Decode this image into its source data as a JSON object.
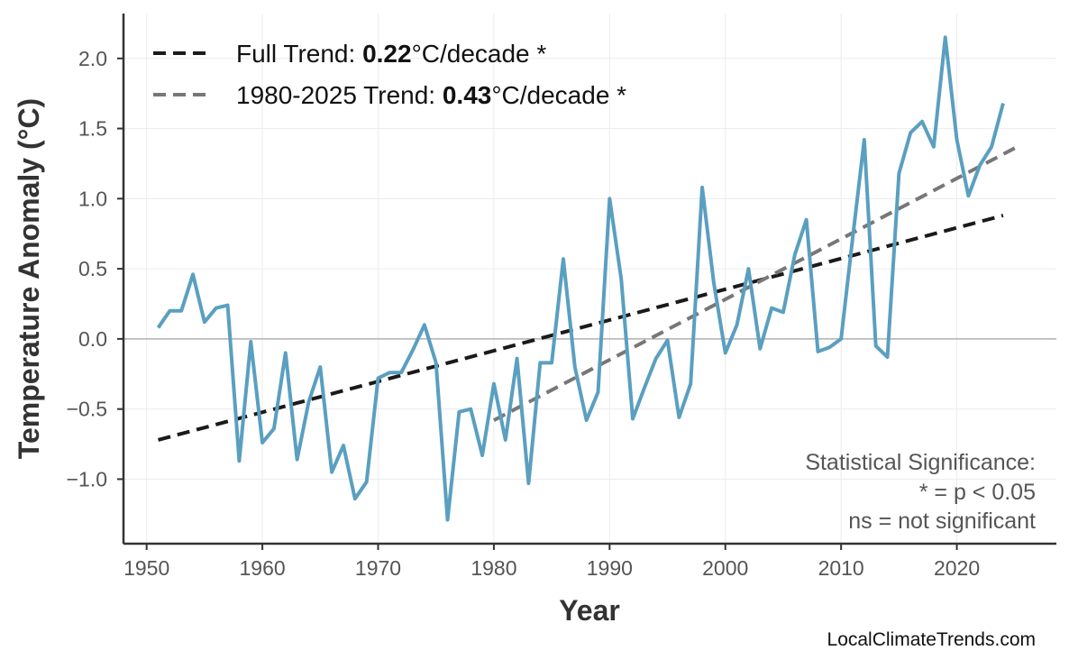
{
  "chart_data": {
    "type": "line",
    "title": "",
    "xlabel": "Year",
    "ylabel": "Temperature Anomaly (°C)",
    "xlim": [
      1948,
      2028.6
    ],
    "ylim": [
      -1.46,
      2.32
    ],
    "xticks": [
      1950,
      1960,
      1970,
      1980,
      1990,
      2000,
      2010,
      2020
    ],
    "xtick_labels": [
      "1950",
      "1960",
      "1970",
      "1980",
      "1990",
      "2000",
      "2010",
      "2020"
    ],
    "yticks": [
      -1.0,
      -0.5,
      0.0,
      0.5,
      1.0,
      1.5,
      2.0
    ],
    "ytick_labels": [
      "−1.0",
      "−0.5",
      "0.0",
      "0.5",
      "1.0",
      "1.5",
      "2.0"
    ],
    "grid": true,
    "zero_line": true,
    "legend_position": "top-left",
    "colors": {
      "series": "#5a9fc0",
      "full_trend": "#1a1a1a",
      "recent_trend": "#777777",
      "grid": "#ececec",
      "zero": "#b0b0b0"
    },
    "series": [
      {
        "x": [
          1951,
          1952,
          1953,
          1954,
          1955,
          1956,
          1957,
          1958,
          1959,
          1960,
          1961,
          1962,
          1963,
          1964,
          1965,
          1966,
          1967,
          1968,
          1969,
          1970,
          1971,
          1972,
          1973,
          1974,
          1975,
          1976,
          1977,
          1978,
          1979,
          1980,
          1981,
          1982,
          1983,
          1984,
          1985,
          1986,
          1987,
          1988,
          1989,
          1990,
          1991,
          1992,
          1993,
          1994,
          1995,
          1996,
          1997,
          1998,
          1999,
          2000,
          2001,
          2002,
          2003,
          2004,
          2005,
          2006,
          2007,
          2008,
          2009,
          2010,
          2011,
          2012,
          2013,
          2014,
          2015,
          2016,
          2017,
          2018,
          2019,
          2020,
          2021,
          2022,
          2023,
          2024
        ],
        "values": [
          0.08,
          0.2,
          0.2,
          0.46,
          0.12,
          0.22,
          0.24,
          -0.87,
          -0.02,
          -0.74,
          -0.64,
          -0.1,
          -0.86,
          -0.45,
          -0.2,
          -0.95,
          -0.76,
          -1.14,
          -1.02,
          -0.28,
          -0.24,
          -0.24,
          -0.08,
          0.1,
          -0.17,
          -1.29,
          -0.52,
          -0.5,
          -0.83,
          -0.32,
          -0.72,
          -0.14,
          -1.03,
          -0.17,
          -0.17,
          0.57,
          -0.2,
          -0.58,
          -0.38,
          1.0,
          0.43,
          -0.57,
          -0.35,
          -0.14,
          -0.01,
          -0.56,
          -0.32,
          1.08,
          0.4,
          -0.1,
          0.1,
          0.5,
          -0.07,
          0.22,
          0.19,
          0.6,
          0.85,
          -0.09,
          -0.06,
          0.0,
          0.72,
          1.42,
          -0.05,
          -0.13,
          1.18,
          1.47,
          1.55,
          1.37,
          2.15,
          1.42,
          1.02,
          1.24,
          1.37,
          1.68
        ]
      }
    ],
    "trends": [
      {
        "name_prefix": "Full Trend: ",
        "slope_label": "0.22",
        "suffix": "°C/decade *",
        "x": [
          1951,
          2024
        ],
        "values": [
          -0.72,
          0.88
        ],
        "style": "dashed"
      },
      {
        "name_prefix": "1980-2025 Trend: ",
        "slope_label": "0.43",
        "suffix": "°C/decade *",
        "x": [
          1980,
          2025
        ],
        "values": [
          -0.58,
          1.36
        ],
        "style": "dashed"
      }
    ],
    "annotation": [
      "Statistical Significance:",
      "* = p < 0.05",
      "ns = not significant"
    ]
  },
  "watermark": "LocalClimateTrends.com"
}
